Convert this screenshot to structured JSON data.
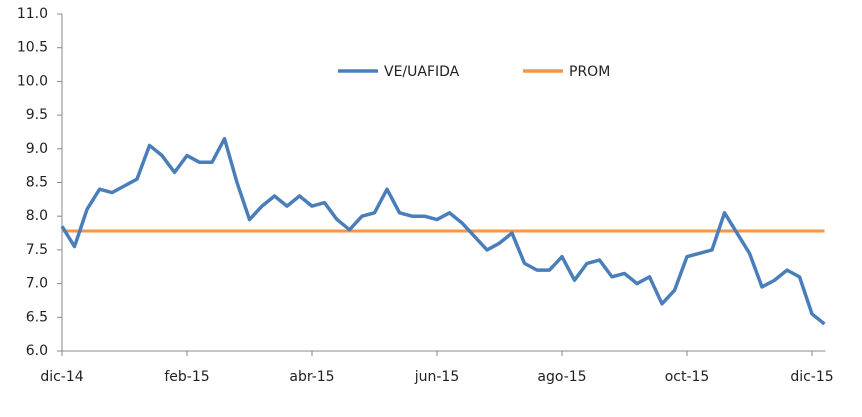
{
  "chart_data": {
    "type": "line",
    "categories": [
      "dic-14",
      null,
      null,
      null,
      null,
      null,
      null,
      null,
      null,
      null,
      "feb-15",
      null,
      null,
      null,
      null,
      null,
      null,
      null,
      null,
      null,
      "abr-15",
      null,
      null,
      null,
      null,
      null,
      null,
      null,
      null,
      null,
      "jun-15",
      null,
      null,
      null,
      null,
      null,
      null,
      null,
      null,
      null,
      "ago-15",
      null,
      null,
      null,
      null,
      null,
      null,
      null,
      null,
      null,
      "oct-15",
      null,
      null,
      null,
      null,
      null,
      null,
      null,
      null,
      null,
      "dic-15",
      null
    ],
    "series": [
      {
        "name": "VE/UAFIDA",
        "color": "#4a7ebb",
        "values": [
          7.85,
          7.55,
          8.1,
          8.4,
          8.35,
          8.45,
          8.55,
          9.05,
          8.9,
          8.65,
          8.9,
          8.8,
          8.8,
          9.15,
          8.5,
          7.95,
          8.15,
          8.3,
          8.15,
          8.3,
          8.15,
          8.2,
          7.95,
          7.8,
          8.0,
          8.05,
          8.4,
          8.05,
          8.0,
          8.0,
          7.95,
          8.05,
          7.9,
          7.7,
          7.5,
          7.6,
          7.75,
          7.3,
          7.2,
          7.2,
          7.4,
          7.05,
          7.3,
          7.35,
          7.1,
          7.15,
          7.0,
          7.1,
          6.7,
          6.9,
          7.4,
          7.45,
          7.5,
          8.05,
          7.75,
          7.45,
          6.95,
          7.05,
          7.2,
          7.1,
          6.55,
          6.4
        ]
      },
      {
        "name": "PROM",
        "color": "#f79646",
        "values": [
          7.78,
          7.78,
          7.78,
          7.78,
          7.78,
          7.78,
          7.78,
          7.78,
          7.78,
          7.78,
          7.78,
          7.78,
          7.78,
          7.78,
          7.78,
          7.78,
          7.78,
          7.78,
          7.78,
          7.78,
          7.78,
          7.78,
          7.78,
          7.78,
          7.78,
          7.78,
          7.78,
          7.78,
          7.78,
          7.78,
          7.78,
          7.78,
          7.78,
          7.78,
          7.78,
          7.78,
          7.78,
          7.78,
          7.78,
          7.78,
          7.78,
          7.78,
          7.78,
          7.78,
          7.78,
          7.78,
          7.78,
          7.78,
          7.78,
          7.78,
          7.78,
          7.78,
          7.78,
          7.78,
          7.78,
          7.78,
          7.78,
          7.78,
          7.78,
          7.78,
          7.78,
          7.78
        ]
      }
    ],
    "ylim": [
      6,
      11
    ],
    "yticks": [
      {
        "value": 6,
        "label": "6.0"
      },
      {
        "value": 6.5,
        "label": "6.5"
      },
      {
        "value": 7,
        "label": "7.0"
      },
      {
        "value": 7.5,
        "label": "7.5"
      },
      {
        "value": 8,
        "label": "8.0"
      },
      {
        "value": 8.5,
        "label": "8.5"
      },
      {
        "value": 9,
        "label": "9.0"
      },
      {
        "value": 9.5,
        "label": "9.5"
      },
      {
        "value": 10,
        "label": "10.0"
      },
      {
        "value": 10.5,
        "label": "10.5"
      },
      {
        "value": 11,
        "label": "11.0"
      }
    ],
    "grid": false
  }
}
